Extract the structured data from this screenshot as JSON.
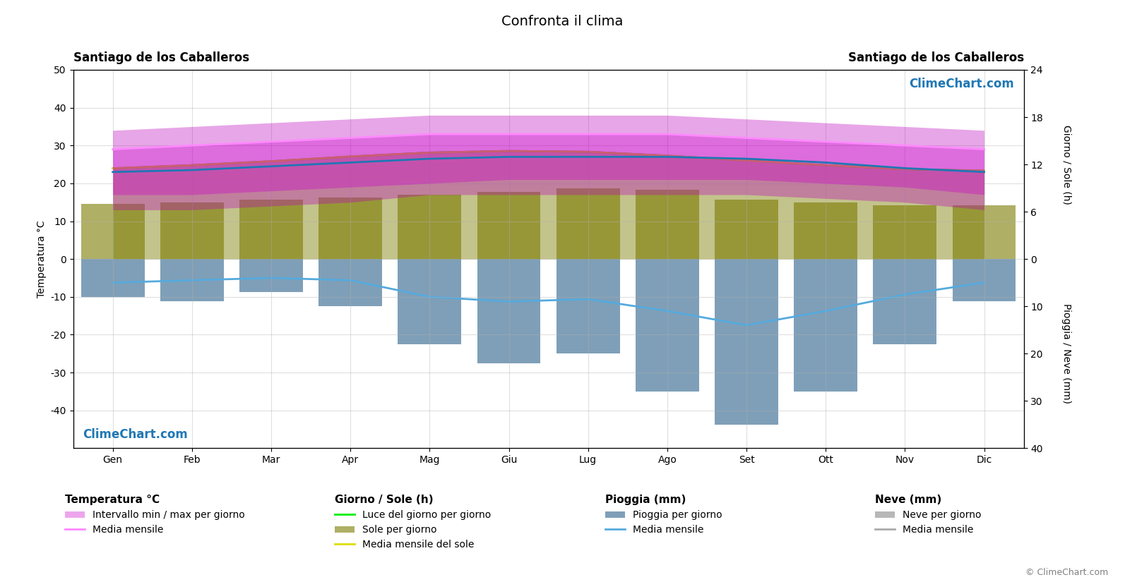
{
  "chart_data": {
    "type": "combo",
    "title": "Confronta il clima",
    "location_left": "Santiago de los Caballeros",
    "location_right": "Santiago de los Caballeros",
    "categories": [
      "Gen",
      "Feb",
      "Mar",
      "Apr",
      "Mag",
      "Giu",
      "Lug",
      "Ago",
      "Set",
      "Ott",
      "Nov",
      "Dic"
    ],
    "ylabel": "Temperatura °C",
    "ylim": [
      -50,
      50
    ],
    "yticks": [
      -40,
      -30,
      -20,
      -10,
      0,
      10,
      20,
      30,
      40,
      50
    ],
    "y2label": "Giorno / Sole (h)",
    "y2lim": [
      -24,
      24
    ],
    "y2ticks": [
      0,
      6,
      12,
      18,
      24
    ],
    "y3label": "Pioggia / Neve (mm)",
    "y3lim": [
      40,
      -40
    ],
    "y3ticks": [
      10,
      20,
      30,
      40
    ],
    "grid": true,
    "legend_groups": [
      "Temperatura °C",
      "Giorno / Sole (h)",
      "Pioggia (mm)",
      "Neve (mm)"
    ],
    "annotations": [
      "ClimeChart.com",
      "ClimeChart.com"
    ],
    "copyright": "© ClimeChart.com",
    "series": [
      {
        "type": "range",
        "color": "#bb00bb",
        "low": [
          13,
          13,
          14,
          15,
          17,
          17,
          17,
          17,
          17,
          16,
          15,
          13
        ],
        "high": [
          34,
          35,
          36,
          37,
          38,
          38,
          38,
          38,
          37,
          36,
          35,
          34
        ]
      },
      {
        "name": "Intervallo min / max per giorno",
        "group": "Temperatura °C",
        "type": "range",
        "color": "#cc00cc",
        "low": [
          17,
          17,
          18,
          19,
          20,
          21,
          21,
          21,
          21,
          20,
          19,
          17
        ],
        "high": [
          29,
          30,
          31,
          32,
          33,
          33,
          33,
          33,
          32,
          31,
          30,
          29
        ]
      },
      {
        "name": "Media mensile",
        "group": "Temperatura °C",
        "type": "line",
        "color": "#ff88ff",
        "values": [
          29,
          30,
          31,
          32,
          33,
          33,
          33,
          33,
          32,
          31,
          30,
          29
        ]
      },
      {
        "type": "line",
        "values": [
          23.0,
          23.5,
          24.5,
          25.5,
          26.5,
          27.0,
          27.0,
          27.0,
          26.5,
          25.5,
          24.0,
          23.0
        ]
      },
      {
        "name": "Luce del giorno per giorno",
        "group": "Giorno / Sole (h)",
        "type": "line",
        "color": "#00ee00",
        "axis": "y2",
        "values": [
          11.5,
          11.9,
          12.4,
          13.0,
          13.5,
          13.7,
          13.6,
          13.1,
          12.5,
          11.9,
          11.4,
          11.2
        ]
      },
      {
        "name": "Sole per giorno",
        "group": "Giorno / Sole (h)",
        "type": "bar",
        "color": "#7a7a00",
        "axis": "y2",
        "values": [
          7.0,
          7.2,
          7.5,
          7.8,
          8.2,
          8.5,
          9.0,
          8.8,
          7.5,
          7.2,
          6.8,
          6.8
        ]
      },
      {
        "type": "area",
        "color": "#7a7a00",
        "axis": "y2",
        "values": [
          11.5,
          11.9,
          12.4,
          13.0,
          13.5,
          13.7,
          13.6,
          13.1,
          12.5,
          11.9,
          11.4,
          11.2
        ]
      },
      {
        "name": "Media mensile del sole",
        "group": "Giorno / Sole (h)",
        "type": "line",
        "color": "#dddd00",
        "axis": "y2",
        "values": [
          11.5,
          11.9,
          12.4,
          13.0,
          13.5,
          13.7,
          13.6,
          13.1,
          12.5,
          11.9,
          11.4,
          11.2
        ]
      },
      {
        "name": "Pioggia per giorno",
        "group": "Pioggia (mm)",
        "type": "bar",
        "color": "#2a5f8a",
        "axis": "y3",
        "values": [
          8,
          9,
          7,
          10,
          18,
          22,
          20,
          28,
          35,
          28,
          18,
          9
        ]
      },
      {
        "name": "Media mensile",
        "group": "Pioggia (mm)",
        "type": "line",
        "color": "#55aadd",
        "axis": "y3",
        "values": [
          5.0,
          4.5,
          4.0,
          4.5,
          8.0,
          9.0,
          8.5,
          11.0,
          14.0,
          11.0,
          7.5,
          5.0
        ]
      },
      {
        "name": "Neve per giorno",
        "group": "Neve (mm)",
        "type": "bar",
        "color": "#888888",
        "axis": "y3",
        "values": [
          null,
          null,
          null,
          null,
          null,
          null,
          null,
          null,
          null,
          null,
          null,
          null
        ]
      },
      {
        "name": "Media mensile",
        "group": "Neve (mm)",
        "type": "line",
        "color": "#aaaaaa",
        "axis": "y3",
        "values": [
          null,
          null,
          null,
          null,
          null,
          null,
          null,
          null,
          null,
          null,
          null,
          null
        ]
      }
    ]
  }
}
